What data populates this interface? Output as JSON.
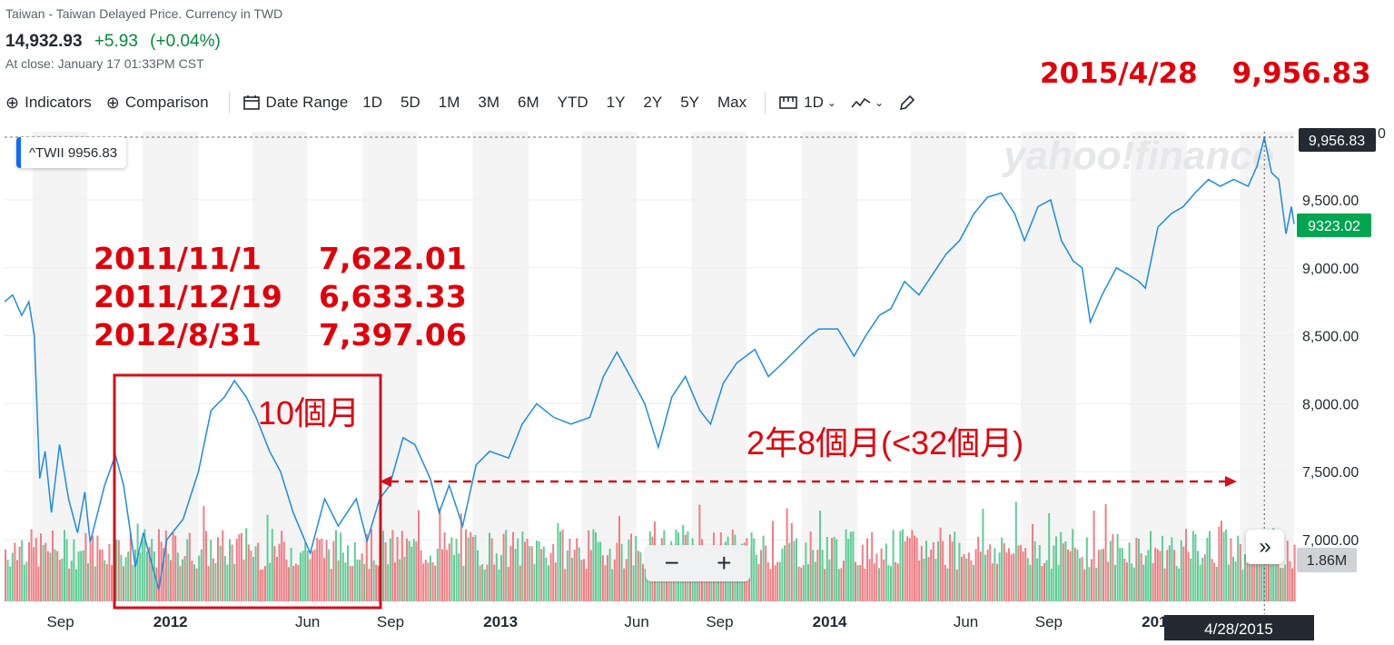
{
  "header": {
    "subtitle": "Taiwan - Taiwan Delayed Price. Currency in TWD",
    "price": "14,932.93",
    "change": "+5.93",
    "change_pct": "(+0.04%)",
    "close_time": "At close: January 17 01:33PM CST"
  },
  "toolbar": {
    "indicators": "Indicators",
    "comparison": "Comparison",
    "date_range": "Date Range",
    "ranges": [
      "1D",
      "5D",
      "1M",
      "3M",
      "6M",
      "YTD",
      "1Y",
      "2Y",
      "5Y",
      "Max"
    ],
    "interval": "1D",
    "icons": {
      "indicators": "plus-circle-icon",
      "comparison": "plus-circle-icon",
      "date_range": "calendar-icon",
      "interval": "candle-icon",
      "chart_type": "line-chart-icon",
      "draw": "pencil-icon"
    }
  },
  "annotations": {
    "peak_date": "2015/4/28",
    "peak_value": "9,956.83",
    "points": [
      {
        "date": "2011/11/1",
        "value": "7,622.01"
      },
      {
        "date": "2011/12/19",
        "value": "6,633.33"
      },
      {
        "date": "2012/8/31",
        "value": "7,397.06"
      }
    ],
    "box_label": "10個月",
    "arrow_label": "2年8個月(<32個月)"
  },
  "chart_data": {
    "type": "line",
    "legend": "^TWII 9956.83",
    "watermark": "yahoo!finance",
    "y_ticks": [
      "9,500.00",
      "9,000.00",
      "8,500.00",
      "8,000.00",
      "7,500.00",
      "7,000.00"
    ],
    "y_tick_values": [
      9500,
      9000,
      8500,
      8000,
      7500,
      7000
    ],
    "ylim": [
      6650,
      10000
    ],
    "x_ticks": [
      {
        "label": "Sep",
        "date": "2011-09-01"
      },
      {
        "label": "2012",
        "date": "2012-01-01"
      },
      {
        "label": "Jun",
        "date": "2012-06-01"
      },
      {
        "label": "Sep",
        "date": "2012-09-01"
      },
      {
        "label": "2013",
        "date": "2013-01-01"
      },
      {
        "label": "Jun",
        "date": "2013-06-01"
      },
      {
        "label": "Sep",
        "date": "2013-09-01"
      },
      {
        "label": "2014",
        "date": "2014-01-01"
      },
      {
        "label": "Jun",
        "date": "2014-06-01"
      },
      {
        "label": "Sep",
        "date": "2014-09-01"
      },
      {
        "label": "2015",
        "date": "2015-01-01"
      }
    ],
    "xlim": [
      "2011-07-01",
      "2015-05-31"
    ],
    "series": [
      {
        "color": "#1c8ce0",
        "points": [
          [
            "2011-07-01",
            8750
          ],
          [
            "2011-07-10",
            8800
          ],
          [
            "2011-07-20",
            8650
          ],
          [
            "2011-07-28",
            8750
          ],
          [
            "2011-08-03",
            8500
          ],
          [
            "2011-08-09",
            7450
          ],
          [
            "2011-08-15",
            7650
          ],
          [
            "2011-08-22",
            7200
          ],
          [
            "2011-08-31",
            7700
          ],
          [
            "2011-09-10",
            7300
          ],
          [
            "2011-09-20",
            7050
          ],
          [
            "2011-09-28",
            7350
          ],
          [
            "2011-10-04",
            6980
          ],
          [
            "2011-10-20",
            7400
          ],
          [
            "2011-11-01",
            7622.01
          ],
          [
            "2011-11-10",
            7400
          ],
          [
            "2011-11-23",
            6800
          ],
          [
            "2011-12-02",
            7050
          ],
          [
            "2011-12-19",
            6633.33
          ],
          [
            "2011-12-28",
            7000
          ],
          [
            "2012-01-15",
            7150
          ],
          [
            "2012-02-01",
            7500
          ],
          [
            "2012-02-15",
            7950
          ],
          [
            "2012-03-01",
            8050
          ],
          [
            "2012-03-12",
            8170
          ],
          [
            "2012-03-25",
            8050
          ],
          [
            "2012-04-05",
            7900
          ],
          [
            "2012-04-20",
            7650
          ],
          [
            "2012-05-02",
            7500
          ],
          [
            "2012-05-16",
            7200
          ],
          [
            "2012-06-04",
            6900
          ],
          [
            "2012-06-20",
            7300
          ],
          [
            "2012-07-05",
            7100
          ],
          [
            "2012-07-25",
            7300
          ],
          [
            "2012-08-06",
            6990
          ],
          [
            "2012-08-20",
            7300
          ],
          [
            "2012-08-31",
            7397.06
          ],
          [
            "2012-09-15",
            7750
          ],
          [
            "2012-09-28",
            7700
          ],
          [
            "2012-10-15",
            7450
          ],
          [
            "2012-10-25",
            7200
          ],
          [
            "2012-11-05",
            7400
          ],
          [
            "2012-11-20",
            7100
          ],
          [
            "2012-12-05",
            7550
          ],
          [
            "2012-12-20",
            7650
          ],
          [
            "2013-01-10",
            7600
          ],
          [
            "2013-01-25",
            7850
          ],
          [
            "2013-02-10",
            8000
          ],
          [
            "2013-03-01",
            7900
          ],
          [
            "2013-03-20",
            7850
          ],
          [
            "2013-04-10",
            7900
          ],
          [
            "2013-04-25",
            8200
          ],
          [
            "2013-05-10",
            8380
          ],
          [
            "2013-05-25",
            8200
          ],
          [
            "2013-06-10",
            8000
          ],
          [
            "2013-06-25",
            7680
          ],
          [
            "2013-07-10",
            8050
          ],
          [
            "2013-07-25",
            8200
          ],
          [
            "2013-08-10",
            7950
          ],
          [
            "2013-08-22",
            7850
          ],
          [
            "2013-09-05",
            8150
          ],
          [
            "2013-09-20",
            8300
          ],
          [
            "2013-10-10",
            8400
          ],
          [
            "2013-10-25",
            8200
          ],
          [
            "2013-11-10",
            8300
          ],
          [
            "2013-11-25",
            8400
          ],
          [
            "2013-12-10",
            8500
          ],
          [
            "2013-12-20",
            8550
          ],
          [
            "2014-01-10",
            8550
          ],
          [
            "2014-01-28",
            8350
          ],
          [
            "2014-02-10",
            8500
          ],
          [
            "2014-02-25",
            8650
          ],
          [
            "2014-03-10",
            8700
          ],
          [
            "2014-03-25",
            8900
          ],
          [
            "2014-04-10",
            8800
          ],
          [
            "2014-04-25",
            8950
          ],
          [
            "2014-05-10",
            9100
          ],
          [
            "2014-05-25",
            9200
          ],
          [
            "2014-06-10",
            9400
          ],
          [
            "2014-06-25",
            9520
          ],
          [
            "2014-07-10",
            9550
          ],
          [
            "2014-07-25",
            9400
          ],
          [
            "2014-08-05",
            9200
          ],
          [
            "2014-08-20",
            9450
          ],
          [
            "2014-09-03",
            9500
          ],
          [
            "2014-09-15",
            9200
          ],
          [
            "2014-09-28",
            9050
          ],
          [
            "2014-10-08",
            9000
          ],
          [
            "2014-10-17",
            8600
          ],
          [
            "2014-10-30",
            8800
          ],
          [
            "2014-11-15",
            9000
          ],
          [
            "2014-11-28",
            8950
          ],
          [
            "2014-12-10",
            8900
          ],
          [
            "2014-12-17",
            8850
          ],
          [
            "2014-12-31",
            9300
          ],
          [
            "2015-01-15",
            9400
          ],
          [
            "2015-01-28",
            9450
          ],
          [
            "2015-02-10",
            9550
          ],
          [
            "2015-02-25",
            9650
          ],
          [
            "2015-03-10",
            9600
          ],
          [
            "2015-03-25",
            9650
          ],
          [
            "2015-04-10",
            9600
          ],
          [
            "2015-04-20",
            9750
          ],
          [
            "2015-04-28",
            9956.83
          ],
          [
            "2015-05-06",
            9700
          ],
          [
            "2015-05-14",
            9650
          ],
          [
            "2015-05-22",
            9250
          ],
          [
            "2015-05-28",
            9450
          ],
          [
            "2015-05-31",
            9323.02
          ]
        ]
      }
    ],
    "current_label": "9323.02",
    "peak_label": "9,956.83",
    "volume_label": "1.86M",
    "crosshair_date": "4/28/2015",
    "peak_tick_partial": "0"
  },
  "controls": {
    "zoom_out": "−",
    "zoom_in": "+",
    "jump": "»"
  },
  "colors": {
    "line": "#1c8ce0",
    "annotation": "#e0000a",
    "vol_up": "#4fc88b",
    "vol_down": "#f07078",
    "band": "#f4f4f5"
  }
}
